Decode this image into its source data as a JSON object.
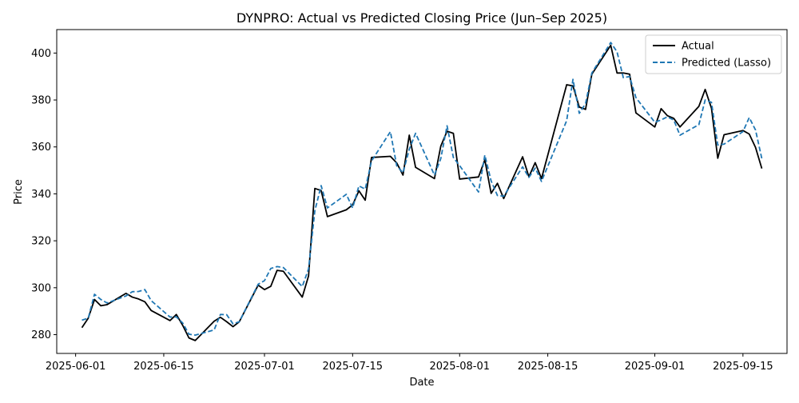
{
  "chart_data": {
    "type": "line",
    "title": "DYNPRO: Actual vs Predicted Closing Price (Jun–Sep 2025)",
    "xlabel": "Date",
    "ylabel": "Price",
    "x_type": "date",
    "xlim": [
      "2025-05-29",
      "2025-09-22"
    ],
    "ylim": [
      272,
      410
    ],
    "x_ticks": [
      "2025-06-01",
      "2025-06-15",
      "2025-07-01",
      "2025-07-15",
      "2025-08-01",
      "2025-08-15",
      "2025-09-01",
      "2025-09-15"
    ],
    "y_ticks": [
      280,
      300,
      320,
      340,
      360,
      380,
      400
    ],
    "grid": false,
    "legend_position": "top-right",
    "series": [
      {
        "name": "Actual",
        "color": "#000000",
        "dash": "solid",
        "points": [
          [
            "2025-06-02",
            283.0
          ],
          [
            "2025-06-03",
            287.0
          ],
          [
            "2025-06-04",
            295.0
          ],
          [
            "2025-06-05",
            292.3
          ],
          [
            "2025-06-06",
            292.8
          ],
          [
            "2025-06-09",
            297.6
          ],
          [
            "2025-06-10",
            296.0
          ],
          [
            "2025-06-11",
            295.2
          ],
          [
            "2025-06-12",
            294.0
          ],
          [
            "2025-06-13",
            290.3
          ],
          [
            "2025-06-16",
            286.0
          ],
          [
            "2025-06-17",
            288.6
          ],
          [
            "2025-06-18",
            284.0
          ],
          [
            "2025-06-19",
            278.6
          ],
          [
            "2025-06-20",
            277.5
          ],
          [
            "2025-06-23",
            285.7
          ],
          [
            "2025-06-24",
            287.4
          ],
          [
            "2025-06-25",
            285.5
          ],
          [
            "2025-06-26",
            283.4
          ],
          [
            "2025-06-27",
            285.5
          ],
          [
            "2025-06-30",
            301.1
          ],
          [
            "2025-07-01",
            299.2
          ],
          [
            "2025-07-02",
            300.6
          ],
          [
            "2025-07-03",
            307.4
          ],
          [
            "2025-07-04",
            307.0
          ],
          [
            "2025-07-07",
            296.0
          ],
          [
            "2025-07-08",
            305.0
          ],
          [
            "2025-07-09",
            342.3
          ],
          [
            "2025-07-10",
            341.4
          ],
          [
            "2025-07-11",
            330.3
          ],
          [
            "2025-07-14",
            333.2
          ],
          [
            "2025-07-15",
            335.3
          ],
          [
            "2025-07-16",
            341.3
          ],
          [
            "2025-07-17",
            337.3
          ],
          [
            "2025-07-18",
            355.5
          ],
          [
            "2025-07-21",
            356.0
          ],
          [
            "2025-07-22",
            353.2
          ],
          [
            "2025-07-23",
            348.0
          ],
          [
            "2025-07-24",
            365.0
          ],
          [
            "2025-07-25",
            351.3
          ],
          [
            "2025-07-28",
            346.5
          ],
          [
            "2025-07-29",
            360.3
          ],
          [
            "2025-07-30",
            366.7
          ],
          [
            "2025-07-31",
            365.8
          ],
          [
            "2025-08-01",
            346.3
          ],
          [
            "2025-08-04",
            347.2
          ],
          [
            "2025-08-05",
            354.5
          ],
          [
            "2025-08-06",
            340.2
          ],
          [
            "2025-08-07",
            344.5
          ],
          [
            "2025-08-08",
            338.0
          ],
          [
            "2025-08-11",
            355.8
          ],
          [
            "2025-08-12",
            347.3
          ],
          [
            "2025-08-13",
            353.3
          ],
          [
            "2025-08-14",
            346.5
          ],
          [
            "2025-08-18",
            386.5
          ],
          [
            "2025-08-19",
            386.0
          ],
          [
            "2025-08-20",
            377.0
          ],
          [
            "2025-08-21",
            376.0
          ],
          [
            "2025-08-22",
            391.0
          ],
          [
            "2025-08-25",
            403.3
          ],
          [
            "2025-08-26",
            391.5
          ],
          [
            "2025-08-27",
            391.5
          ],
          [
            "2025-08-28",
            391.0
          ],
          [
            "2025-08-29",
            374.5
          ],
          [
            "2025-09-01",
            368.5
          ],
          [
            "2025-09-02",
            376.3
          ],
          [
            "2025-09-03",
            373.3
          ],
          [
            "2025-09-04",
            372.2
          ],
          [
            "2025-09-05",
            368.5
          ],
          [
            "2025-09-08",
            377.3
          ],
          [
            "2025-09-09",
            384.5
          ],
          [
            "2025-09-10",
            376.5
          ],
          [
            "2025-09-11",
            355.2
          ],
          [
            "2025-09-12",
            365.2
          ],
          [
            "2025-09-15",
            367.0
          ],
          [
            "2025-09-16",
            365.5
          ],
          [
            "2025-09-17",
            359.8
          ],
          [
            "2025-09-18",
            350.8
          ]
        ]
      },
      {
        "name": "Predicted (Lasso)",
        "color": "#1f77b4",
        "dash": "dashed",
        "points": [
          [
            "2025-06-02",
            286.2
          ],
          [
            "2025-06-03",
            287.0
          ],
          [
            "2025-06-04",
            297.2
          ],
          [
            "2025-06-05",
            295.0
          ],
          [
            "2025-06-06",
            293.5
          ],
          [
            "2025-06-09",
            296.5
          ],
          [
            "2025-06-10",
            298.3
          ],
          [
            "2025-06-11",
            298.4
          ],
          [
            "2025-06-12",
            299.2
          ],
          [
            "2025-06-13",
            294.5
          ],
          [
            "2025-06-16",
            287.5
          ],
          [
            "2025-06-17",
            287.6
          ],
          [
            "2025-06-18",
            285.0
          ],
          [
            "2025-06-19",
            280.2
          ],
          [
            "2025-06-20",
            279.8
          ],
          [
            "2025-06-23",
            282.0
          ],
          [
            "2025-06-24",
            288.6
          ],
          [
            "2025-06-25",
            288.5
          ],
          [
            "2025-06-26",
            284.6
          ],
          [
            "2025-06-27",
            285.5
          ],
          [
            "2025-06-30",
            301.5
          ],
          [
            "2025-07-01",
            303.0
          ],
          [
            "2025-07-02",
            308.2
          ],
          [
            "2025-07-03",
            309.0
          ],
          [
            "2025-07-04",
            308.6
          ],
          [
            "2025-07-07",
            300.5
          ],
          [
            "2025-07-08",
            308.0
          ],
          [
            "2025-07-09",
            332.8
          ],
          [
            "2025-07-10",
            343.5
          ],
          [
            "2025-07-11",
            334.0
          ],
          [
            "2025-07-14",
            339.8
          ],
          [
            "2025-07-15",
            334.0
          ],
          [
            "2025-07-16",
            343.4
          ],
          [
            "2025-07-17",
            342.0
          ],
          [
            "2025-07-18",
            354.0
          ],
          [
            "2025-07-21",
            366.5
          ],
          [
            "2025-07-22",
            352.0
          ],
          [
            "2025-07-23",
            349.0
          ],
          [
            "2025-07-24",
            359.0
          ],
          [
            "2025-07-25",
            365.8
          ],
          [
            "2025-07-28",
            348.0
          ],
          [
            "2025-07-29",
            355.0
          ],
          [
            "2025-07-30",
            369.0
          ],
          [
            "2025-07-31",
            355.5
          ],
          [
            "2025-08-01",
            352.0
          ],
          [
            "2025-08-04",
            340.8
          ],
          [
            "2025-08-05",
            356.5
          ],
          [
            "2025-08-06",
            345.5
          ],
          [
            "2025-08-07",
            339.3
          ],
          [
            "2025-08-08",
            339.0
          ],
          [
            "2025-08-11",
            351.5
          ],
          [
            "2025-08-12",
            347.0
          ],
          [
            "2025-08-13",
            351.0
          ],
          [
            "2025-08-14",
            345.3
          ],
          [
            "2025-08-18",
            371.2
          ],
          [
            "2025-08-19",
            388.8
          ],
          [
            "2025-08-20",
            374.3
          ],
          [
            "2025-08-21",
            378.5
          ],
          [
            "2025-08-22",
            391.5
          ],
          [
            "2025-08-25",
            404.5
          ],
          [
            "2025-08-26",
            400.5
          ],
          [
            "2025-08-27",
            389.5
          ],
          [
            "2025-08-28",
            390.0
          ],
          [
            "2025-08-29",
            381.0
          ],
          [
            "2025-09-01",
            370.5
          ],
          [
            "2025-09-02",
            371.5
          ],
          [
            "2025-09-03",
            372.8
          ],
          [
            "2025-09-04",
            371.5
          ],
          [
            "2025-09-05",
            365.0
          ],
          [
            "2025-09-08",
            369.5
          ],
          [
            "2025-09-09",
            380.0
          ],
          [
            "2025-09-10",
            379.0
          ],
          [
            "2025-09-11",
            360.8
          ],
          [
            "2025-09-12",
            361.2
          ],
          [
            "2025-09-15",
            366.5
          ],
          [
            "2025-09-16",
            372.5
          ],
          [
            "2025-09-17",
            367.2
          ],
          [
            "2025-09-18",
            355.0
          ]
        ]
      }
    ]
  }
}
